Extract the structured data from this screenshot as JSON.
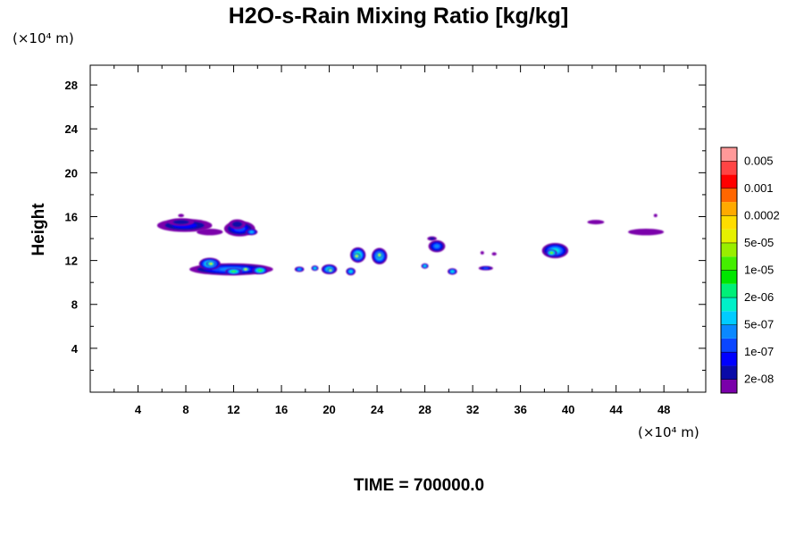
{
  "chart_data": {
    "type": "heatmap",
    "title": "H2O-s-Rain Mixing Ratio [kg/kg]",
    "ylabel": "Height",
    "x_unit": "(×10⁴ m)",
    "y_unit": "(×10⁴ m)",
    "xlim": [
      0,
      51.5
    ],
    "ylim": [
      0,
      29.8
    ],
    "x_ticks": [
      4,
      8,
      12,
      16,
      20,
      24,
      28,
      32,
      36,
      40,
      44,
      48
    ],
    "y_ticks": [
      4,
      8,
      12,
      16,
      20,
      24,
      28
    ],
    "x_tick_labels": [
      "4",
      "8",
      "12",
      "16",
      "20",
      "24",
      "28",
      "32",
      "36",
      "40",
      "44",
      "48"
    ],
    "y_tick_labels": [
      "4",
      "8",
      "12",
      "16",
      "20",
      "24",
      "28"
    ],
    "time_label": "TIME = 700000.0",
    "colorbar": {
      "colors": [
        "#7a00aa",
        "#0a0aa8",
        "#0000ff",
        "#0a46ff",
        "#0a88ff",
        "#00ccff",
        "#00f0c8",
        "#00f078",
        "#00e600",
        "#44ee00",
        "#99ee00",
        "#e6f000",
        "#ffdd00",
        "#ffaa00",
        "#ff6600",
        "#ff0000",
        "#ff4444",
        "#ff9999"
      ],
      "labels": [
        "2e-08",
        "1e-07",
        "5e-07",
        "2e-06",
        "1e-05",
        "5e-05",
        "0.0002",
        "0.001",
        "0.005"
      ]
    },
    "cells": [
      {
        "x": 7.9,
        "y": 15.2,
        "w": 4.6,
        "h": 1.2,
        "level": 2
      },
      {
        "x": 7.6,
        "y": 15.5,
        "w": 2.2,
        "h": 0.7,
        "level": 1
      },
      {
        "x": 10.0,
        "y": 14.6,
        "w": 2.2,
        "h": 0.6,
        "level": 0
      },
      {
        "x": 12.5,
        "y": 14.9,
        "w": 2.6,
        "h": 1.4,
        "level": 3
      },
      {
        "x": 12.3,
        "y": 15.3,
        "w": 1.4,
        "h": 0.9,
        "level": 1
      },
      {
        "x": 13.5,
        "y": 14.6,
        "w": 1.0,
        "h": 0.6,
        "level": 5
      },
      {
        "x": 11.8,
        "y": 11.2,
        "w": 7.0,
        "h": 1.1,
        "level": 4
      },
      {
        "x": 10.0,
        "y": 11.7,
        "w": 1.8,
        "h": 1.1,
        "level": 8
      },
      {
        "x": 10.1,
        "y": 11.7,
        "w": 0.8,
        "h": 0.5,
        "level": 12
      },
      {
        "x": 12.0,
        "y": 11.0,
        "w": 1.4,
        "h": 0.6,
        "level": 9
      },
      {
        "x": 14.2,
        "y": 11.1,
        "w": 1.3,
        "h": 0.7,
        "level": 9
      },
      {
        "x": 13.0,
        "y": 11.2,
        "w": 0.7,
        "h": 0.4,
        "level": 12
      },
      {
        "x": 17.5,
        "y": 11.2,
        "w": 0.8,
        "h": 0.5,
        "level": 5
      },
      {
        "x": 18.8,
        "y": 11.3,
        "w": 0.6,
        "h": 0.5,
        "level": 6
      },
      {
        "x": 20.0,
        "y": 11.2,
        "w": 1.3,
        "h": 0.9,
        "level": 7
      },
      {
        "x": 20.1,
        "y": 11.1,
        "w": 0.5,
        "h": 0.4,
        "level": 11
      },
      {
        "x": 21.8,
        "y": 11.0,
        "w": 0.8,
        "h": 0.7,
        "level": 6
      },
      {
        "x": 22.4,
        "y": 12.5,
        "w": 1.3,
        "h": 1.4,
        "level": 8
      },
      {
        "x": 22.3,
        "y": 12.4,
        "w": 0.6,
        "h": 0.5,
        "level": 12
      },
      {
        "x": 24.2,
        "y": 12.4,
        "w": 1.3,
        "h": 1.5,
        "level": 7
      },
      {
        "x": 24.2,
        "y": 12.5,
        "w": 0.5,
        "h": 0.6,
        "level": 12
      },
      {
        "x": 28.0,
        "y": 11.5,
        "w": 0.6,
        "h": 0.5,
        "level": 6
      },
      {
        "x": 29.0,
        "y": 13.3,
        "w": 1.4,
        "h": 1.1,
        "level": 4
      },
      {
        "x": 28.6,
        "y": 14.0,
        "w": 0.8,
        "h": 0.4,
        "level": 1
      },
      {
        "x": 30.3,
        "y": 11.0,
        "w": 0.8,
        "h": 0.6,
        "level": 6
      },
      {
        "x": 32.8,
        "y": 12.7,
        "w": 0.3,
        "h": 0.3,
        "level": 0
      },
      {
        "x": 33.8,
        "y": 12.6,
        "w": 0.4,
        "h": 0.3,
        "level": 0
      },
      {
        "x": 33.1,
        "y": 11.3,
        "w": 1.2,
        "h": 0.4,
        "level": 3
      },
      {
        "x": 38.9,
        "y": 12.9,
        "w": 2.2,
        "h": 1.4,
        "level": 6
      },
      {
        "x": 38.6,
        "y": 12.7,
        "w": 0.9,
        "h": 0.6,
        "level": 10
      },
      {
        "x": 42.3,
        "y": 15.5,
        "w": 1.4,
        "h": 0.4,
        "level": 0
      },
      {
        "x": 46.5,
        "y": 14.6,
        "w": 3.0,
        "h": 0.6,
        "level": 0
      },
      {
        "x": 47.3,
        "y": 16.1,
        "w": 0.3,
        "h": 0.3,
        "level": 0
      },
      {
        "x": 7.6,
        "y": 16.1,
        "w": 0.5,
        "h": 0.3,
        "level": 0
      }
    ]
  }
}
